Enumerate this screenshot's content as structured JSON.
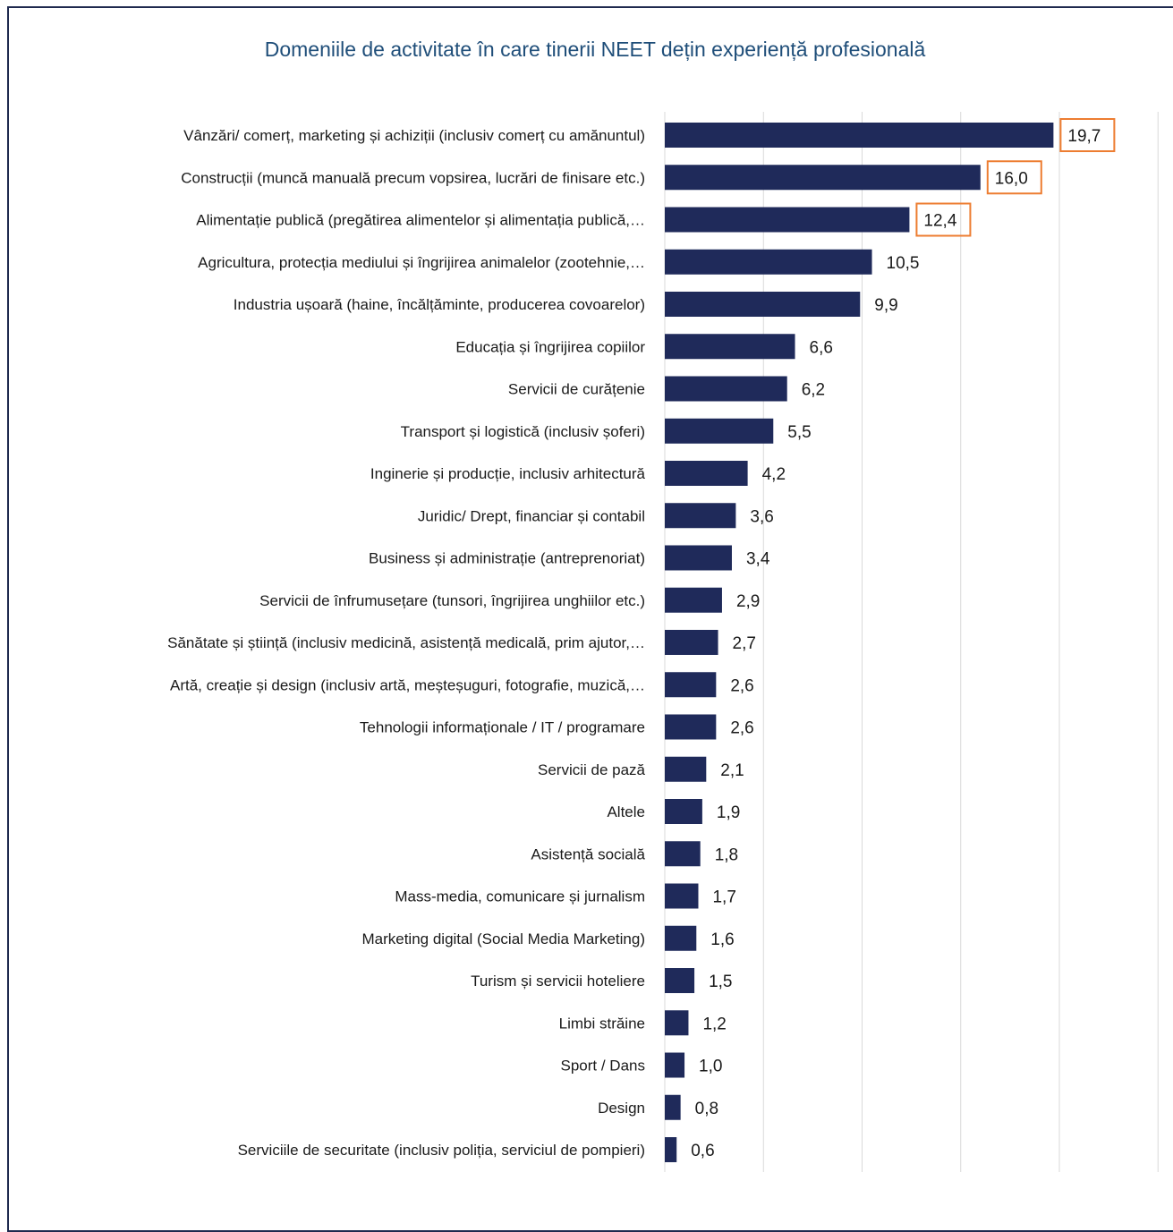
{
  "chart_data": {
    "type": "bar",
    "orientation": "horizontal",
    "title": "Domeniile de activitate în care tinerii NEET dețin experiență profesională",
    "xlabel": "",
    "ylabel": "",
    "xlim": [
      0,
      25
    ],
    "grid": true,
    "legend": "none",
    "bar_color": "#1f2a5a",
    "highlight_color": "#ed7d31",
    "highlighted_indices": [
      0,
      1,
      2
    ],
    "categories": [
      "Vânzări/ comerț, marketing și achiziții (inclusiv comerț cu amănuntul)",
      "Construcții (muncă manuală precum vopsirea, lucrări de finisare etc.)",
      "Alimentație publică (pregătirea alimentelor și alimentația publică,…",
      "Agricultura, protecția mediului și îngrijirea animalelor (zootehnie,…",
      "Industria ușoară (haine, încălțăminte, producerea covoarelor)",
      "Educația și îngrijirea copiilor",
      "Servicii de curățenie",
      "Transport și logistică (inclusiv șoferi)",
      "Inginerie și producție, inclusiv arhitectură",
      "Juridic/ Drept, financiar și contabil",
      "Business și administrație (antreprenoriat)",
      "Servicii de înfrumusețare (tunsori, îngrijirea unghiilor etc.)",
      "Sănătate și știință (inclusiv medicină, asistență medicală, prim ajutor,…",
      "Artă, creație și design (inclusiv artă, meșteșuguri, fotografie, muzică,…",
      "Tehnologii informaționale / IT / programare",
      "Servicii de pază",
      "Altele",
      "Asistență socială",
      "Mass-media, comunicare și jurnalism",
      "Marketing digital (Social Media Marketing)",
      "Turism și servicii hoteliere",
      "Limbi străine",
      "Sport / Dans",
      "Design",
      "Serviciile de securitate (inclusiv poliția, serviciul de pompieri)"
    ],
    "values": [
      19.7,
      16.0,
      12.4,
      10.5,
      9.9,
      6.6,
      6.2,
      5.5,
      4.2,
      3.6,
      3.4,
      2.9,
      2.7,
      2.6,
      2.6,
      2.1,
      1.9,
      1.8,
      1.7,
      1.6,
      1.5,
      1.2,
      1.0,
      0.8,
      0.6
    ],
    "data_labels": [
      "19,7",
      "16,0",
      "12,4",
      "10,5",
      "9,9",
      "6,6",
      "6,2",
      "5,5",
      "4,2",
      "3,6",
      "3,4",
      "2,9",
      "2,7",
      "2,6",
      "2,6",
      "2,1",
      "1,9",
      "1,8",
      "1,7",
      "1,6",
      "1,5",
      "1,2",
      "1,0",
      "0,8",
      "0,6"
    ]
  }
}
